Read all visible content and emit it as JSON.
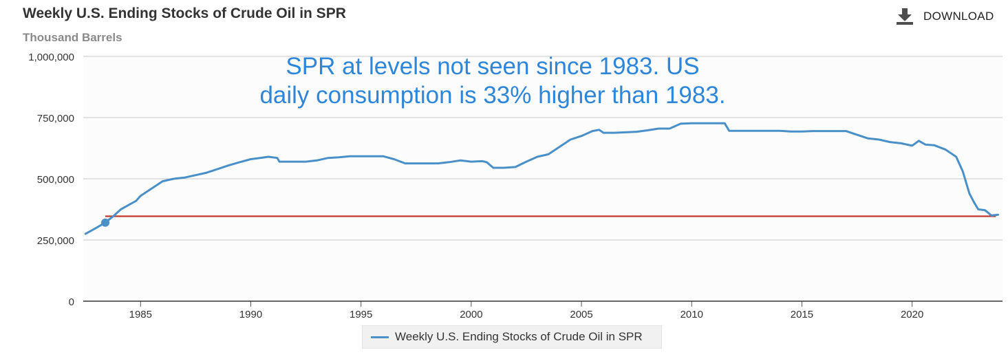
{
  "header": {
    "title": "Weekly U.S. Ending Stocks of Crude Oil in SPR",
    "subtitle": "Thousand Barrels",
    "download_label": "DOWNLOAD",
    "download_icon": "download-icon"
  },
  "legend": {
    "label": "Weekly U.S. Ending Stocks of Crude Oil in SPR"
  },
  "colors": {
    "series": "#4a90c8",
    "reference_line": "#c0392b",
    "annotation": "#2e86d9",
    "grid": "#c8c8c8",
    "plot_bg": "#fcfcfc"
  },
  "chart_data": {
    "type": "line",
    "title": "Weekly U.S. Ending Stocks of Crude Oil in SPR",
    "subtitle": "Thousand Barrels",
    "xlabel": "",
    "ylabel": "",
    "xlim": [
      1982.4,
      2024.1
    ],
    "ylim": [
      0,
      1000000
    ],
    "y_ticks": [
      0,
      250000,
      500000,
      750000,
      1000000
    ],
    "y_tick_labels": [
      "0",
      "250,000",
      "500,000",
      "750,000",
      "1,000,000"
    ],
    "x_ticks": [
      1985,
      1990,
      1995,
      2000,
      2005,
      2010,
      2015,
      2020
    ],
    "x_tick_labels": [
      "1985",
      "1990",
      "1995",
      "2000",
      "2005",
      "2010",
      "2015",
      "2020"
    ],
    "grid": true,
    "legend_position": "bottom-center",
    "annotation": "SPR at levels not seen since 1983. US daily consumption is 33% higher than 1983.",
    "reference_line": {
      "y": 347000,
      "x_start": 1983.4,
      "x_end": 2023.8
    },
    "highlight_point": {
      "x": 1983.4,
      "y": 321000
    },
    "series": [
      {
        "name": "Weekly U.S. Ending Stocks of Crude Oil in SPR",
        "points": [
          [
            1982.5,
            275000
          ],
          [
            1983.0,
            300000
          ],
          [
            1983.4,
            321000
          ],
          [
            1983.8,
            350000
          ],
          [
            1984.1,
            375000
          ],
          [
            1984.4,
            390000
          ],
          [
            1984.8,
            410000
          ],
          [
            1985.0,
            430000
          ],
          [
            1985.5,
            460000
          ],
          [
            1986.0,
            490000
          ],
          [
            1986.5,
            500000
          ],
          [
            1987.0,
            505000
          ],
          [
            1987.5,
            515000
          ],
          [
            1988.0,
            525000
          ],
          [
            1988.5,
            540000
          ],
          [
            1989.0,
            555000
          ],
          [
            1989.5,
            568000
          ],
          [
            1990.0,
            580000
          ],
          [
            1990.5,
            586000
          ],
          [
            1990.8,
            590000
          ],
          [
            1991.2,
            585000
          ],
          [
            1991.3,
            570000
          ],
          [
            1992.0,
            570000
          ],
          [
            1992.5,
            570000
          ],
          [
            1993.0,
            575000
          ],
          [
            1993.5,
            585000
          ],
          [
            1994.0,
            588000
          ],
          [
            1994.5,
            592000
          ],
          [
            1995.0,
            592000
          ],
          [
            1995.5,
            592000
          ],
          [
            1996.0,
            592000
          ],
          [
            1996.5,
            580000
          ],
          [
            1997.0,
            563000
          ],
          [
            1997.5,
            563000
          ],
          [
            1998.0,
            563000
          ],
          [
            1998.5,
            563000
          ],
          [
            1999.0,
            568000
          ],
          [
            1999.5,
            575000
          ],
          [
            2000.0,
            570000
          ],
          [
            2000.5,
            572000
          ],
          [
            2000.7,
            568000
          ],
          [
            2001.0,
            545000
          ],
          [
            2001.5,
            545000
          ],
          [
            2002.0,
            548000
          ],
          [
            2002.5,
            570000
          ],
          [
            2003.0,
            590000
          ],
          [
            2003.5,
            600000
          ],
          [
            2004.0,
            630000
          ],
          [
            2004.5,
            660000
          ],
          [
            2005.0,
            675000
          ],
          [
            2005.5,
            695000
          ],
          [
            2005.8,
            700000
          ],
          [
            2006.0,
            688000
          ],
          [
            2006.5,
            688000
          ],
          [
            2007.0,
            690000
          ],
          [
            2007.5,
            692000
          ],
          [
            2008.0,
            698000
          ],
          [
            2008.5,
            705000
          ],
          [
            2009.0,
            705000
          ],
          [
            2009.5,
            725000
          ],
          [
            2010.0,
            727000
          ],
          [
            2010.5,
            727000
          ],
          [
            2011.0,
            727000
          ],
          [
            2011.5,
            727000
          ],
          [
            2011.7,
            696000
          ],
          [
            2012.5,
            696000
          ],
          [
            2013.0,
            696000
          ],
          [
            2013.5,
            696000
          ],
          [
            2014.0,
            696000
          ],
          [
            2014.5,
            693000
          ],
          [
            2015.0,
            693000
          ],
          [
            2015.5,
            695000
          ],
          [
            2016.0,
            695000
          ],
          [
            2016.5,
            695000
          ],
          [
            2017.0,
            695000
          ],
          [
            2017.5,
            680000
          ],
          [
            2018.0,
            665000
          ],
          [
            2018.5,
            660000
          ],
          [
            2019.0,
            650000
          ],
          [
            2019.5,
            645000
          ],
          [
            2020.0,
            635000
          ],
          [
            2020.3,
            655000
          ],
          [
            2020.6,
            640000
          ],
          [
            2021.0,
            637000
          ],
          [
            2021.5,
            620000
          ],
          [
            2022.0,
            590000
          ],
          [
            2022.3,
            530000
          ],
          [
            2022.6,
            440000
          ],
          [
            2022.8,
            405000
          ],
          [
            2023.0,
            375000
          ],
          [
            2023.3,
            372000
          ],
          [
            2023.6,
            350000
          ],
          [
            2023.9,
            353000
          ]
        ]
      }
    ]
  }
}
